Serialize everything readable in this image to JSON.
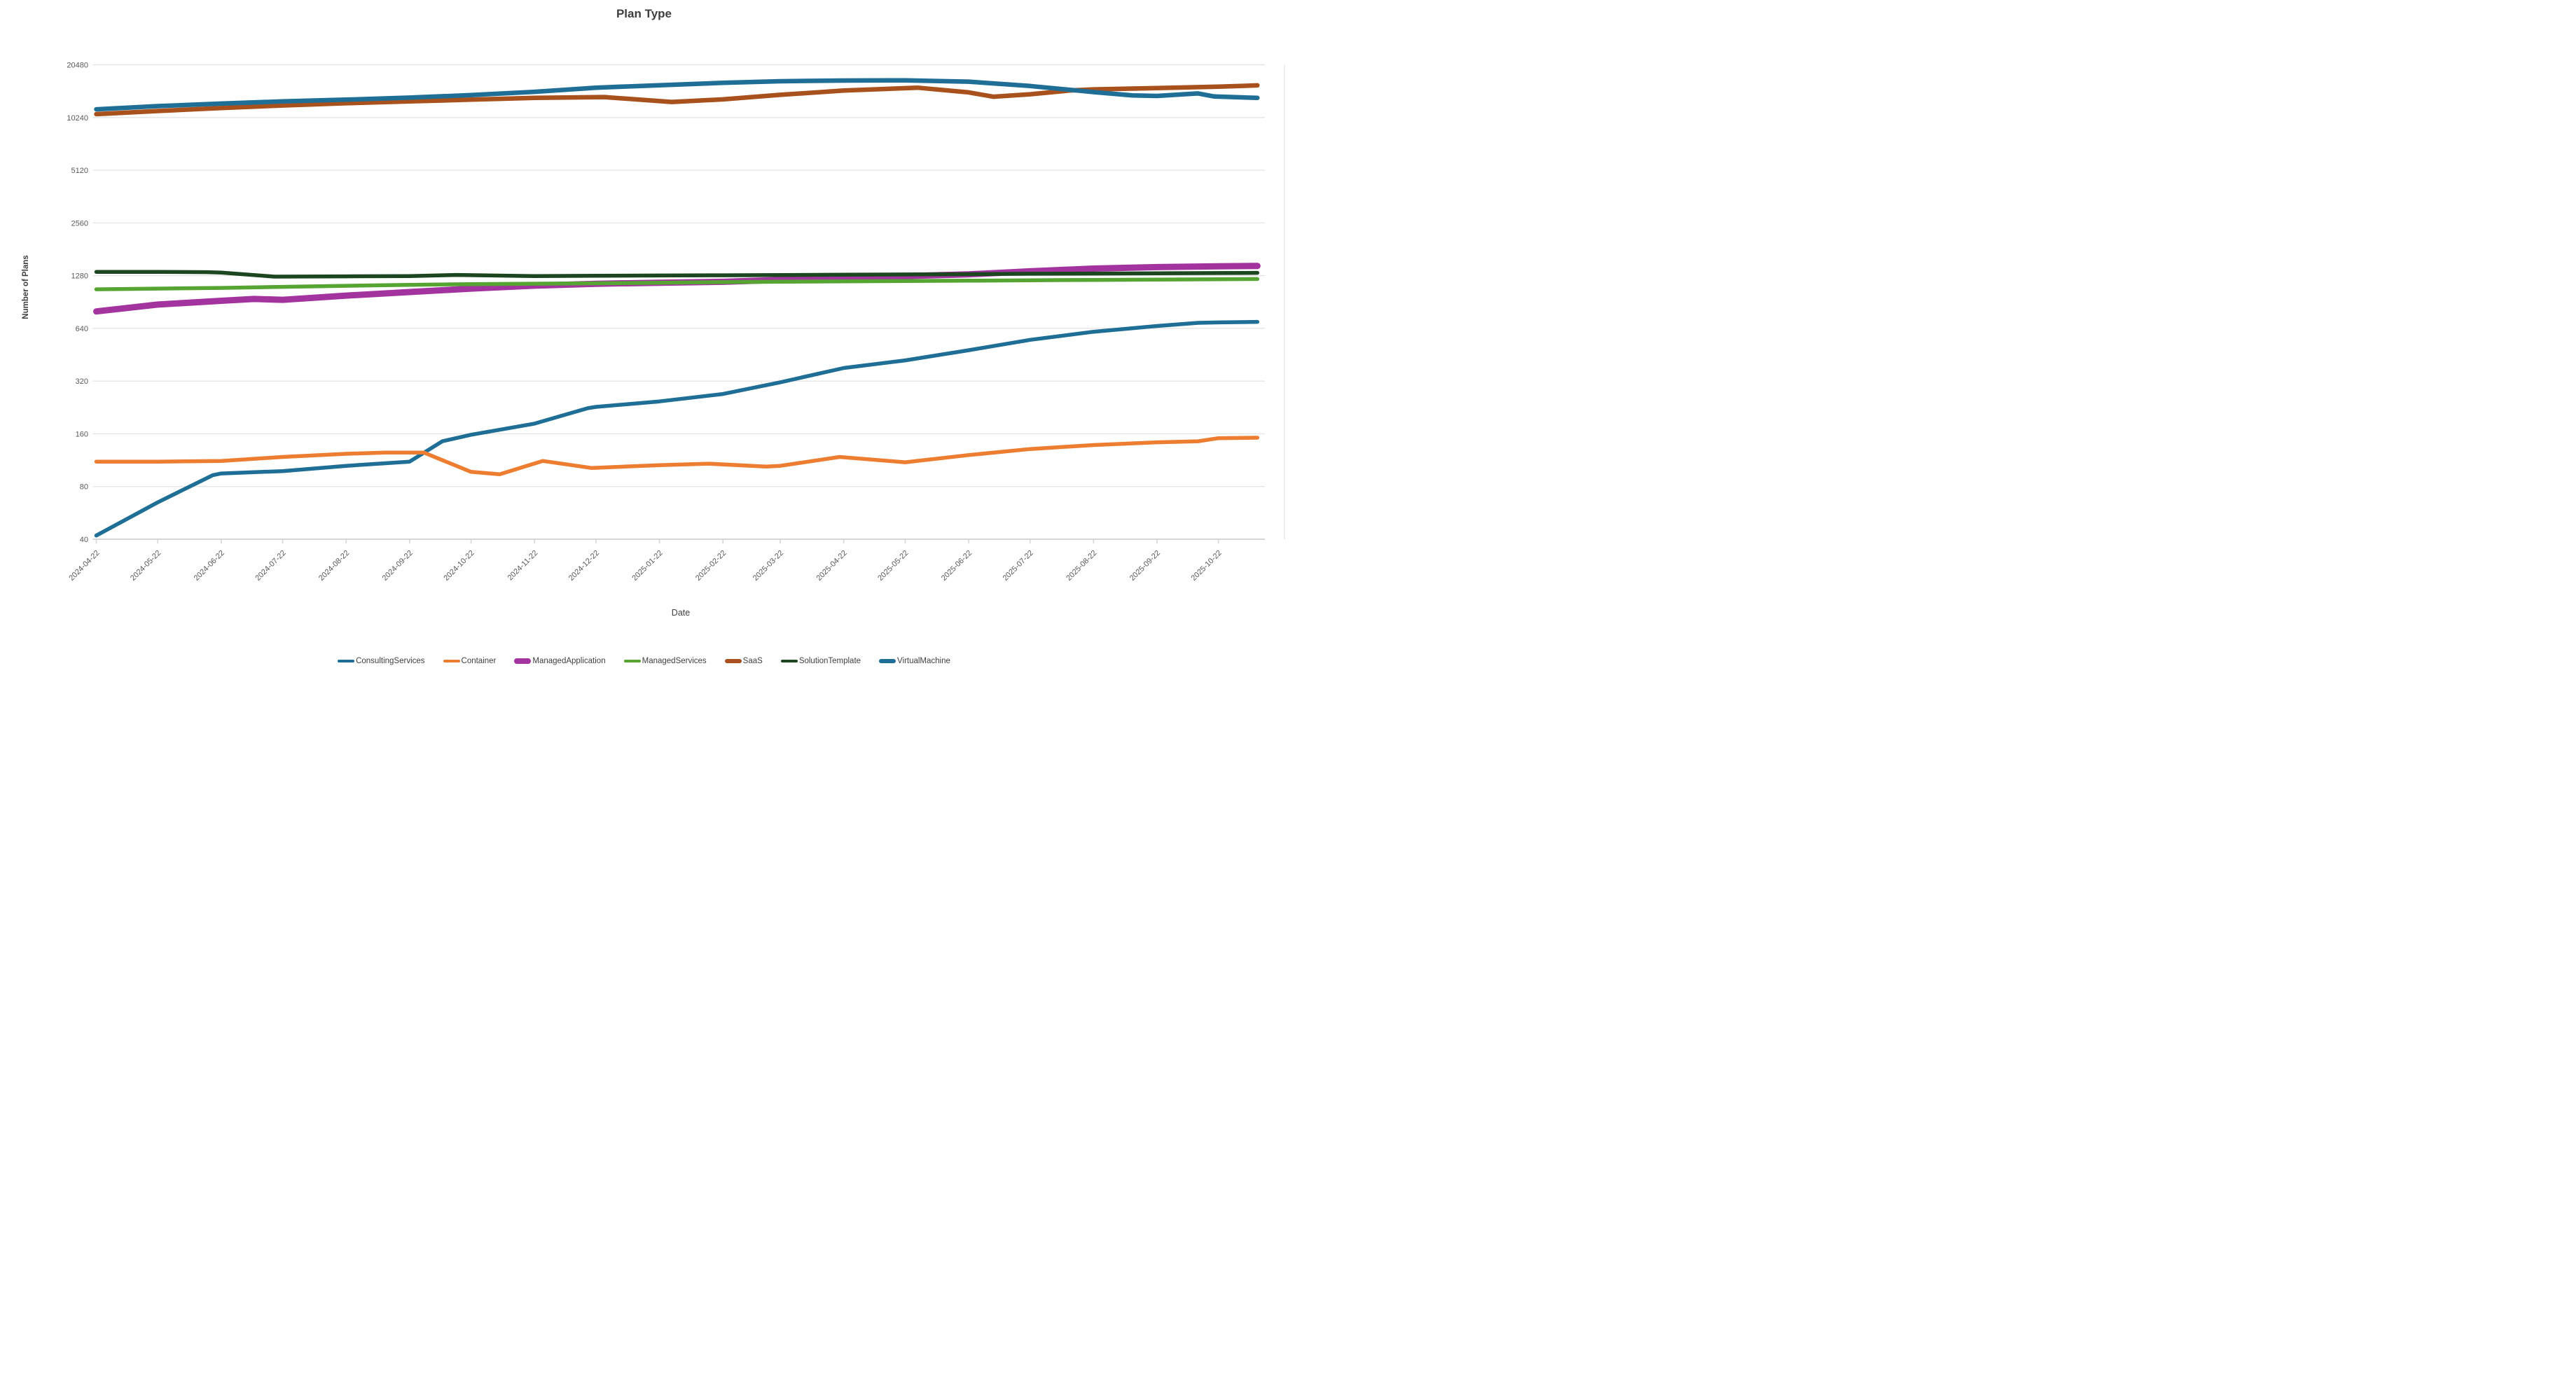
{
  "title": "Plan Type",
  "x_axis": {
    "label": "Date"
  },
  "y_axis": {
    "label": "Number of Plans"
  },
  "colors": {
    "gridline": "#e2e2e2",
    "axis_line": "#d6d6d6",
    "tick_text": "#595959",
    "title_text": "#3f3f3f"
  },
  "chart_data": {
    "type": "line",
    "title": "Plan Type",
    "xlabel": "Date",
    "ylabel": "Number of Plans",
    "y_scale": "log2",
    "ylim": [
      40,
      20480
    ],
    "grid": "horizontal",
    "legend_position": "bottom",
    "y_ticks": [
      20480,
      10240,
      5120,
      2560,
      1280,
      640,
      320,
      160,
      80,
      40
    ],
    "x_tick_dates": [
      "2024-04-22",
      "2024-05-22",
      "2024-06-22",
      "2024-07-22",
      "2024-08-22",
      "2024-09-22",
      "2024-10-22",
      "2024-11-22",
      "2024-12-22",
      "2025-01-22",
      "2025-02-22",
      "2025-03-22",
      "2025-04-22",
      "2025-05-22",
      "2025-06-22",
      "2025-07-22",
      "2025-08-22",
      "2025-09-22",
      "2025-10-22"
    ],
    "series": [
      {
        "name": "ConsultingServices",
        "color": "#1e6e96",
        "width": 5.5,
        "points": [
          [
            "2024-04-22",
            42
          ],
          [
            "2024-05-22",
            65
          ],
          [
            "2024-06-18",
            93
          ],
          [
            "2024-06-22",
            95
          ],
          [
            "2024-07-22",
            98
          ],
          [
            "2024-08-22",
            105
          ],
          [
            "2024-09-22",
            111
          ],
          [
            "2024-10-08",
            145
          ],
          [
            "2024-10-22",
            158
          ],
          [
            "2024-11-22",
            183
          ],
          [
            "2024-12-18",
            224
          ],
          [
            "2024-12-22",
            228
          ],
          [
            "2025-01-22",
            245
          ],
          [
            "2025-02-22",
            270
          ],
          [
            "2025-03-22",
            315
          ],
          [
            "2025-04-22",
            380
          ],
          [
            "2025-05-22",
            420
          ],
          [
            "2025-06-22",
            480
          ],
          [
            "2025-07-22",
            550
          ],
          [
            "2025-08-22",
            612
          ],
          [
            "2025-09-22",
            660
          ],
          [
            "2025-10-12",
            688
          ],
          [
            "2025-10-22",
            692
          ],
          [
            "2025-11-10",
            697
          ]
        ]
      },
      {
        "name": "Container",
        "color": "#ed7d31",
        "width": 5.5,
        "points": [
          [
            "2024-04-22",
            111
          ],
          [
            "2024-05-22",
            111
          ],
          [
            "2024-06-22",
            112
          ],
          [
            "2024-07-22",
            118
          ],
          [
            "2024-08-22",
            123
          ],
          [
            "2024-09-10",
            125
          ],
          [
            "2024-09-29",
            125
          ],
          [
            "2024-10-22",
            97
          ],
          [
            "2024-11-05",
            94
          ],
          [
            "2024-11-26",
            112
          ],
          [
            "2024-12-20",
            102
          ],
          [
            "2025-01-22",
            106
          ],
          [
            "2025-02-15",
            108
          ],
          [
            "2025-03-15",
            104
          ],
          [
            "2025-03-22",
            105
          ],
          [
            "2025-04-20",
            118
          ],
          [
            "2025-05-22",
            110
          ],
          [
            "2025-06-22",
            121
          ],
          [
            "2025-07-22",
            131
          ],
          [
            "2025-08-22",
            138
          ],
          [
            "2025-09-22",
            143
          ],
          [
            "2025-10-12",
            145
          ],
          [
            "2025-10-22",
            151
          ],
          [
            "2025-11-10",
            152
          ]
        ]
      },
      {
        "name": "ManagedApplication",
        "color": "#a2339f",
        "width": 9,
        "points": [
          [
            "2024-04-22",
            800
          ],
          [
            "2024-05-22",
            875
          ],
          [
            "2024-06-22",
            920
          ],
          [
            "2024-07-08",
            942
          ],
          [
            "2024-07-22",
            932
          ],
          [
            "2024-08-22",
            985
          ],
          [
            "2024-09-22",
            1032
          ],
          [
            "2024-10-22",
            1080
          ],
          [
            "2024-11-22",
            1122
          ],
          [
            "2024-12-22",
            1150
          ],
          [
            "2025-01-22",
            1166
          ],
          [
            "2025-02-22",
            1180
          ],
          [
            "2025-03-22",
            1210
          ],
          [
            "2025-04-22",
            1242
          ],
          [
            "2025-05-22",
            1272
          ],
          [
            "2025-06-22",
            1302
          ],
          [
            "2025-07-22",
            1355
          ],
          [
            "2025-08-22",
            1405
          ],
          [
            "2025-09-22",
            1432
          ],
          [
            "2025-10-22",
            1448
          ],
          [
            "2025-11-10",
            1455
          ]
        ]
      },
      {
        "name": "ManagedServices",
        "color": "#56a532",
        "width": 5.5,
        "points": [
          [
            "2024-04-22",
            1070
          ],
          [
            "2024-05-22",
            1080
          ],
          [
            "2024-06-22",
            1090
          ],
          [
            "2024-07-22",
            1105
          ],
          [
            "2024-08-22",
            1120
          ],
          [
            "2024-09-22",
            1135
          ],
          [
            "2024-10-22",
            1145
          ],
          [
            "2024-11-22",
            1152
          ],
          [
            "2024-12-22",
            1158
          ],
          [
            "2025-01-22",
            1165
          ],
          [
            "2025-02-22",
            1175
          ],
          [
            "2025-03-22",
            1182
          ],
          [
            "2025-04-22",
            1188
          ],
          [
            "2025-05-22",
            1193
          ],
          [
            "2025-06-22",
            1198
          ],
          [
            "2025-07-22",
            1205
          ],
          [
            "2025-08-22",
            1210
          ],
          [
            "2025-09-22",
            1215
          ],
          [
            "2025-10-22",
            1220
          ],
          [
            "2025-11-10",
            1225
          ]
        ]
      },
      {
        "name": "SaaS",
        "color": "#a9511c",
        "width": 6.5,
        "points": [
          [
            "2024-04-22",
            10700
          ],
          [
            "2024-05-22",
            11150
          ],
          [
            "2024-06-22",
            11600
          ],
          [
            "2024-07-22",
            12000
          ],
          [
            "2024-08-22",
            12350
          ],
          [
            "2024-09-22",
            12650
          ],
          [
            "2024-10-22",
            12950
          ],
          [
            "2024-11-22",
            13250
          ],
          [
            "2024-12-26",
            13400
          ],
          [
            "2025-01-28",
            12560
          ],
          [
            "2025-02-22",
            13000
          ],
          [
            "2025-03-22",
            13800
          ],
          [
            "2025-04-22",
            14600
          ],
          [
            "2025-05-28",
            15150
          ],
          [
            "2025-06-22",
            14250
          ],
          [
            "2025-07-04",
            13460
          ],
          [
            "2025-07-22",
            13900
          ],
          [
            "2025-08-10",
            14600
          ],
          [
            "2025-08-22",
            14820
          ],
          [
            "2025-09-22",
            15080
          ],
          [
            "2025-10-22",
            15350
          ],
          [
            "2025-11-10",
            15630
          ]
        ]
      },
      {
        "name": "SolutionTemplate",
        "color": "#1c4620",
        "width": 5.5,
        "points": [
          [
            "2024-04-22",
            1345
          ],
          [
            "2024-05-22",
            1345
          ],
          [
            "2024-06-15",
            1340
          ],
          [
            "2024-06-22",
            1332
          ],
          [
            "2024-07-18",
            1264
          ],
          [
            "2024-08-22",
            1268
          ],
          [
            "2024-09-22",
            1272
          ],
          [
            "2024-10-15",
            1292
          ],
          [
            "2024-11-22",
            1272
          ],
          [
            "2024-12-22",
            1278
          ],
          [
            "2025-01-22",
            1282
          ],
          [
            "2025-02-22",
            1286
          ],
          [
            "2025-03-22",
            1290
          ],
          [
            "2025-04-22",
            1295
          ],
          [
            "2025-05-22",
            1300
          ],
          [
            "2025-06-22",
            1305
          ],
          [
            "2025-07-22",
            1312
          ],
          [
            "2025-08-22",
            1316
          ],
          [
            "2025-09-22",
            1320
          ],
          [
            "2025-10-22",
            1325
          ],
          [
            "2025-11-10",
            1328
          ]
        ]
      },
      {
        "name": "VirtualMachine",
        "color": "#1e6e96",
        "width": 6.5,
        "points": [
          [
            "2024-04-22",
            11400
          ],
          [
            "2024-05-22",
            11900
          ],
          [
            "2024-06-22",
            12300
          ],
          [
            "2024-07-22",
            12650
          ],
          [
            "2024-08-22",
            12950
          ],
          [
            "2024-09-22",
            13300
          ],
          [
            "2024-10-22",
            13750
          ],
          [
            "2024-11-22",
            14350
          ],
          [
            "2024-12-22",
            15150
          ],
          [
            "2025-01-22",
            15650
          ],
          [
            "2025-02-22",
            16150
          ],
          [
            "2025-03-22",
            16500
          ],
          [
            "2025-04-22",
            16650
          ],
          [
            "2025-05-22",
            16700
          ],
          [
            "2025-06-22",
            16400
          ],
          [
            "2025-07-22",
            15500
          ],
          [
            "2025-08-22",
            14300
          ],
          [
            "2025-09-10",
            13700
          ],
          [
            "2025-09-22",
            13600
          ],
          [
            "2025-10-12",
            14050
          ],
          [
            "2025-10-20",
            13500
          ],
          [
            "2025-11-10",
            13250
          ]
        ]
      }
    ]
  },
  "legend": {
    "items": [
      {
        "label": "ConsultingServices",
        "color": "#1e6e96"
      },
      {
        "label": "Container",
        "color": "#ed7d31"
      },
      {
        "label": "ManagedApplication",
        "color": "#a2339f"
      },
      {
        "label": "ManagedServices",
        "color": "#56a532"
      },
      {
        "label": "SaaS",
        "color": "#a9511c"
      },
      {
        "label": "SolutionTemplate",
        "color": "#1c4620"
      },
      {
        "label": "VirtualMachine",
        "color": "#1e6e96"
      }
    ]
  }
}
